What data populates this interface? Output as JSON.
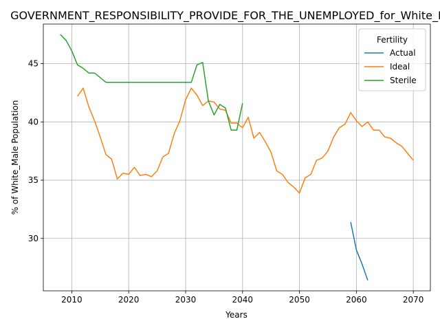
{
  "chart_data": {
    "type": "line",
    "title": "GOVERNMENT_RESPONSIBILITY_PROVIDE_FOR_THE_UNEMPLOYED_for_White_Male",
    "xlabel": "Years",
    "ylabel": "% of White_Male Population",
    "xlim": [
      2005,
      2073
    ],
    "ylim": [
      25.5,
      48.4
    ],
    "xticks": [
      2010,
      2020,
      2030,
      2040,
      2050,
      2060,
      2070
    ],
    "yticks": [
      30,
      35,
      40,
      45
    ],
    "grid": true,
    "legend": {
      "title": "Fertility",
      "placement": "top-right"
    },
    "series": [
      {
        "name": "Actual",
        "color": "#1f77b4",
        "x": [
          2059,
          2060,
          2061,
          2062
        ],
        "y": [
          31.4,
          29.0,
          27.8,
          26.4
        ]
      },
      {
        "name": "Ideal",
        "color": "#ff7f0e",
        "x": [
          2011,
          2012,
          2013,
          2014,
          2015,
          2016,
          2017,
          2018,
          2019,
          2020,
          2021,
          2022,
          2023,
          2024,
          2025,
          2026,
          2027,
          2028,
          2029,
          2030,
          2031,
          2032,
          2033,
          2034,
          2035,
          2036,
          2037,
          2038,
          2039,
          2040,
          2041,
          2042,
          2043,
          2044,
          2045,
          2046,
          2047,
          2048,
          2049,
          2050,
          2051,
          2052,
          2053,
          2054,
          2055,
          2056,
          2057,
          2058,
          2059,
          2060,
          2061,
          2062,
          2063,
          2064,
          2065,
          2066,
          2067,
          2068,
          2069,
          2070
        ],
        "y": [
          42.2,
          42.9,
          41.3,
          40.1,
          38.7,
          37.2,
          36.8,
          35.1,
          35.6,
          35.5,
          36.1,
          35.4,
          35.5,
          35.3,
          35.8,
          37.0,
          37.3,
          39.0,
          40.1,
          41.9,
          42.9,
          42.3,
          41.4,
          41.8,
          41.7,
          41.1,
          41.0,
          39.9,
          39.9,
          39.5,
          40.4,
          38.6,
          39.1,
          38.3,
          37.4,
          35.8,
          35.5,
          34.8,
          34.4,
          33.9,
          35.2,
          35.5,
          36.7,
          36.9,
          37.5,
          38.7,
          39.5,
          39.8,
          40.8,
          40.1,
          39.6,
          40.0,
          39.3,
          39.3,
          38.7,
          38.6,
          38.2,
          37.9,
          37.3,
          36.7
        ]
      },
      {
        "name": "Sterile",
        "color": "#2ca02c",
        "x": [
          2008,
          2009,
          2010,
          2011,
          2012,
          2013,
          2014,
          2015,
          2016,
          2017,
          2018,
          2019,
          2020,
          2021,
          2022,
          2023,
          2024,
          2025,
          2026,
          2027,
          2028,
          2029,
          2030,
          2031,
          2032,
          2033,
          2034,
          2035,
          2036,
          2037,
          2038,
          2039,
          2040
        ],
        "y": [
          47.5,
          47.0,
          46.1,
          44.9,
          44.6,
          44.2,
          44.2,
          43.8,
          43.4,
          43.4,
          43.4,
          43.4,
          43.4,
          43.4,
          43.4,
          43.4,
          43.4,
          43.4,
          43.4,
          43.4,
          43.4,
          43.4,
          43.4,
          43.4,
          44.9,
          45.1,
          41.8,
          40.6,
          41.5,
          41.2,
          39.3,
          39.3,
          41.6
        ]
      }
    ]
  }
}
